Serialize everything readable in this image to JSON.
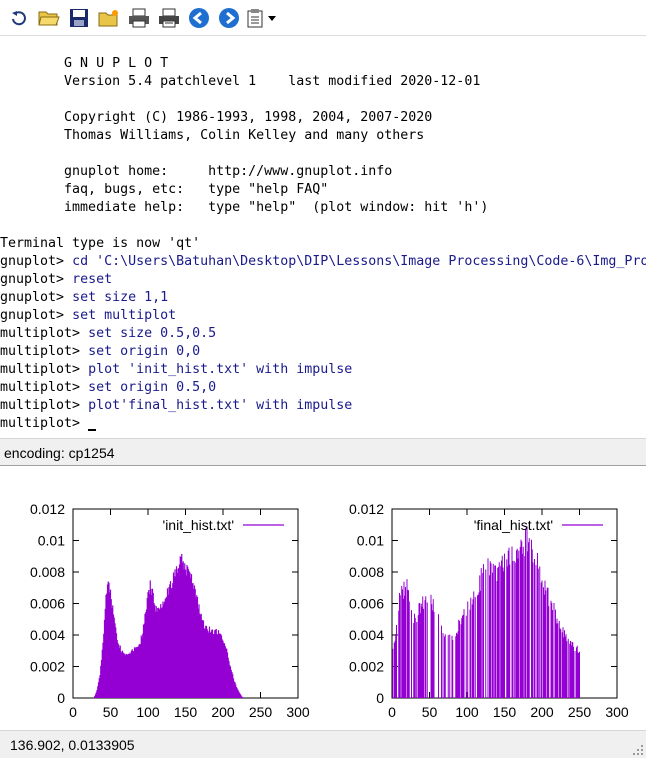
{
  "toolbar": {
    "icons": [
      "refresh-icon",
      "open-folder-icon",
      "save-icon",
      "change-dir-icon",
      "print-icon",
      "print-setup-icon",
      "back-icon",
      "forward-icon",
      "options-icon",
      "dropdown-arrow-icon"
    ]
  },
  "console": {
    "lines": [
      {
        "prompt": "",
        "text": ""
      },
      {
        "prompt": "",
        "text": "        G N U P L O T"
      },
      {
        "prompt": "",
        "text": "        Version 5.4 patchlevel 1    last modified 2020-12-01"
      },
      {
        "prompt": "",
        "text": ""
      },
      {
        "prompt": "",
        "text": "        Copyright (C) 1986-1993, 1998, 2004, 2007-2020"
      },
      {
        "prompt": "",
        "text": "        Thomas Williams, Colin Kelley and many others"
      },
      {
        "prompt": "",
        "text": ""
      },
      {
        "prompt": "",
        "text": "        gnuplot home:     http://www.gnuplot.info"
      },
      {
        "prompt": "",
        "text": "        faq, bugs, etc:   type \"help FAQ\""
      },
      {
        "prompt": "",
        "text": "        immediate help:   type \"help\"  (plot window: hit 'h')"
      },
      {
        "prompt": "",
        "text": ""
      },
      {
        "prompt": "",
        "text": "Terminal type is now 'qt'"
      },
      {
        "prompt": "gnuplot> ",
        "text": "cd 'C:\\Users\\Batuhan\\Desktop\\DIP\\Lessons\\Image Processing\\Code-6\\Img_Pro"
      },
      {
        "prompt": "gnuplot> ",
        "text": "reset"
      },
      {
        "prompt": "gnuplot> ",
        "text": "set size 1,1"
      },
      {
        "prompt": "gnuplot> ",
        "text": "set multiplot"
      },
      {
        "prompt": "multiplot> ",
        "text": "set size 0.5,0.5"
      },
      {
        "prompt": "multiplot> ",
        "text": "set origin 0,0"
      },
      {
        "prompt": "multiplot> ",
        "text": "plot 'init_hist.txt' with impulse"
      },
      {
        "prompt": "multiplot> ",
        "text": "set origin 0.5,0"
      },
      {
        "prompt": "multiplot> ",
        "text": "plot'final_hist.txt' with impulse"
      },
      {
        "prompt": "multiplot> ",
        "text": ""
      }
    ]
  },
  "status": {
    "encoding": "encoding: cp1254"
  },
  "plot_status": {
    "coords": "136.902,  0.0133905"
  },
  "colors": {
    "series": "#9400d3",
    "prompt": "#000000",
    "command": "#1a1a8c"
  },
  "chart_data": [
    {
      "type": "bar",
      "title": "",
      "xlabel": "",
      "ylabel": "",
      "xlim": [
        0,
        300
      ],
      "ylim": [
        0,
        0.012
      ],
      "xticks": [
        "0",
        "50",
        "100",
        "150",
        "200",
        "250",
        "300"
      ],
      "yticks": [
        "0",
        "0.002",
        "0.004",
        "0.006",
        "0.008",
        "0.01",
        "0.012"
      ],
      "legend": "top-right",
      "series": [
        {
          "name": "'init_hist.txt'",
          "color": "#9400d3",
          "points": [
            [
              28,
              0
            ],
            [
              32,
              0.0005
            ],
            [
              36,
              0.0015
            ],
            [
              40,
              0.0035
            ],
            [
              44,
              0.0065
            ],
            [
              47,
              0.0075
            ],
            [
              50,
              0.0068
            ],
            [
              55,
              0.005
            ],
            [
              60,
              0.0036
            ],
            [
              65,
              0.003
            ],
            [
              70,
              0.0028
            ],
            [
              75,
              0.0029
            ],
            [
              80,
              0.0031
            ],
            [
              85,
              0.0033
            ],
            [
              90,
              0.0036
            ],
            [
              95,
              0.0048
            ],
            [
              100,
              0.0065
            ],
            [
              103,
              0.0072
            ],
            [
              106,
              0.0068
            ],
            [
              110,
              0.0058
            ],
            [
              115,
              0.0056
            ],
            [
              120,
              0.0062
            ],
            [
              125,
              0.0068
            ],
            [
              130,
              0.0072
            ],
            [
              135,
              0.0078
            ],
            [
              140,
              0.0085
            ],
            [
              143,
              0.0092
            ],
            [
              147,
              0.0088
            ],
            [
              150,
              0.0082
            ],
            [
              155,
              0.0083
            ],
            [
              160,
              0.0075
            ],
            [
              165,
              0.0064
            ],
            [
              170,
              0.0054
            ],
            [
              175,
              0.0047
            ],
            [
              180,
              0.0044
            ],
            [
              185,
              0.0043
            ],
            [
              190,
              0.0043
            ],
            [
              195,
              0.0042
            ],
            [
              200,
              0.0038
            ],
            [
              205,
              0.003
            ],
            [
              210,
              0.002
            ],
            [
              215,
              0.0011
            ],
            [
              220,
              0.0005
            ],
            [
              225,
              0.0001
            ],
            [
              228,
              0
            ]
          ]
        }
      ]
    },
    {
      "type": "bar",
      "title": "",
      "xlabel": "",
      "ylabel": "",
      "xlim": [
        0,
        300
      ],
      "ylim": [
        0,
        0.012
      ],
      "xticks": [
        "0",
        "50",
        "100",
        "150",
        "200",
        "250",
        "300"
      ],
      "yticks": [
        "0",
        "0.002",
        "0.004",
        "0.006",
        "0.008",
        "0.01",
        "0.012"
      ],
      "legend": "top-right",
      "series": [
        {
          "name": "'final_hist.txt'",
          "color": "#9400d3",
          "points": [
            [
              0,
              0.0025
            ],
            [
              10,
              0.006
            ],
            [
              20,
              0.0072
            ],
            [
              30,
              0.0048
            ],
            [
              40,
              0.0058
            ],
            [
              50,
              0.0064
            ],
            [
              60,
              0.0052
            ],
            [
              70,
              0.0042
            ],
            [
              80,
              0.0038
            ],
            [
              90,
              0.0046
            ],
            [
              100,
              0.0055
            ],
            [
              110,
              0.0062
            ],
            [
              120,
              0.0075
            ],
            [
              130,
              0.0082
            ],
            [
              140,
              0.0078
            ],
            [
              150,
              0.0084
            ],
            [
              160,
              0.0088
            ],
            [
              170,
              0.0092
            ],
            [
              180,
              0.0098
            ],
            [
              190,
              0.0088
            ],
            [
              200,
              0.0075
            ],
            [
              210,
              0.006
            ],
            [
              220,
              0.005
            ],
            [
              230,
              0.004
            ],
            [
              240,
              0.0035
            ],
            [
              250,
              0.0028
            ]
          ]
        }
      ]
    }
  ]
}
